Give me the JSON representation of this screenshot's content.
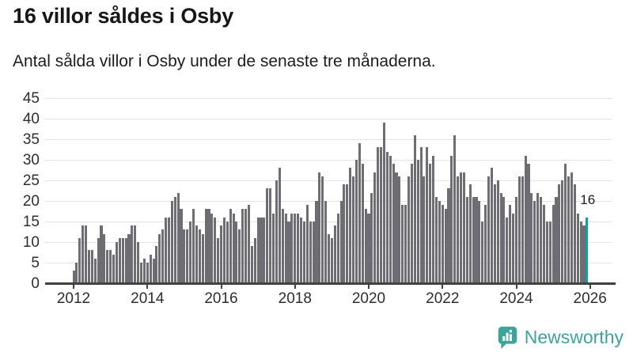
{
  "header": {
    "title": "16 villor såldes i Osby",
    "subtitle": "Antal sålda villor i Osby under de senaste tre månaderna."
  },
  "chart_data": {
    "type": "bar",
    "title": "16 villor såldes i Osby",
    "subtitle": "Antal sålda villor i Osby under de senaste tre månaderna.",
    "x_tick_labels": [
      "2012",
      "2014",
      "2016",
      "2018",
      "2020",
      "2022",
      "2024",
      "2026"
    ],
    "y_ticks": [
      0,
      5,
      10,
      15,
      20,
      25,
      30,
      35,
      40,
      45
    ],
    "ylim": [
      0,
      45
    ],
    "grid": true,
    "legend": "none",
    "bar_color": "#6e6d73",
    "highlight_color": "#0aa2a0",
    "axis_color": "#414141",
    "gridline_color": "#e3e3e3",
    "x_start_label": "2012",
    "values": [
      3,
      5,
      11,
      14,
      14,
      8,
      8,
      6,
      11,
      14,
      12,
      8,
      8,
      7,
      10,
      11,
      11,
      11,
      12,
      14,
      14,
      10,
      5,
      6,
      5,
      7,
      6,
      9,
      12,
      13,
      16,
      16,
      20,
      21,
      22,
      18,
      13,
      13,
      15,
      18,
      14,
      13,
      12,
      18,
      18,
      17,
      16,
      11,
      14,
      16,
      15,
      18,
      17,
      15,
      13,
      18,
      18,
      19,
      9,
      11,
      16,
      16,
      16,
      23,
      23,
      17,
      25,
      28,
      18,
      17,
      15,
      17,
      17,
      17,
      16,
      15,
      19,
      15,
      15,
      20,
      27,
      26,
      20,
      12,
      11,
      14,
      17,
      20,
      24,
      24,
      28,
      26,
      30,
      34,
      29,
      18,
      17,
      22,
      27,
      33,
      33,
      39,
      32,
      31,
      29,
      27,
      26,
      19,
      19,
      26,
      29,
      36,
      30,
      33,
      26,
      33,
      29,
      31,
      21,
      20,
      19,
      18,
      23,
      31,
      36,
      26,
      27,
      27,
      21,
      24,
      21,
      21,
      20,
      15,
      19,
      26,
      28,
      24,
      25,
      22,
      21,
      16,
      19,
      17,
      21,
      26,
      26,
      31,
      29,
      22,
      20,
      22,
      21,
      19,
      15,
      15,
      19,
      21,
      24,
      25,
      29,
      26,
      27,
      24,
      17,
      15,
      14,
      16
    ],
    "highlight_index": 167,
    "annotation": {
      "text": "16",
      "target": "last-bar"
    }
  },
  "footer": {
    "brand": "Newsworthy",
    "brand_color": "#3fa39a"
  }
}
